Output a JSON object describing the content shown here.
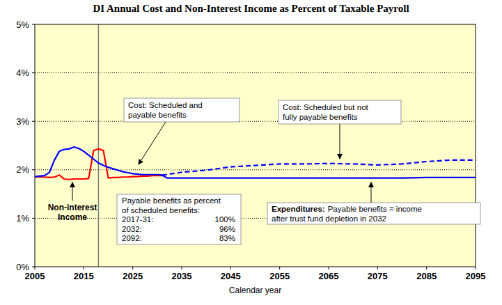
{
  "chart_data": {
    "type": "line",
    "title": "DI Annual Cost and Non-Interest Income as Percent of Taxable Payroll",
    "x_label": "Calendar year",
    "x": [
      2005,
      2006,
      2007,
      2008,
      2009,
      2010,
      2011,
      2012,
      2013,
      2014,
      2015,
      2016,
      2017,
      2018,
      2019,
      2020,
      2021,
      2022,
      2023,
      2024,
      2025,
      2026,
      2027,
      2028,
      2029,
      2030,
      2031,
      2032,
      2033,
      2034,
      2035,
      2040,
      2045,
      2050,
      2055,
      2060,
      2065,
      2070,
      2075,
      2080,
      2085,
      2090,
      2095
    ],
    "series": [
      {
        "color": "#ff0000",
        "line_style": "solid",
        "values": [
          1.85,
          1.85,
          1.85,
          1.84,
          1.85,
          1.89,
          1.81,
          1.8,
          1.81,
          1.81,
          1.81,
          1.82,
          2.4,
          2.43,
          2.4,
          1.83,
          1.84,
          1.84,
          1.85,
          1.85,
          1.86,
          1.86,
          1.87,
          1.87,
          1.88,
          1.88,
          1.88,
          null,
          null,
          null,
          null,
          null,
          null,
          null,
          null,
          null,
          null,
          null,
          null,
          null,
          null,
          null,
          null
        ]
      },
      {
        "color": "#0000ff",
        "line_style": "solid",
        "values": [
          1.86,
          1.87,
          1.88,
          1.95,
          2.2,
          2.38,
          2.42,
          2.43,
          2.47,
          2.44,
          2.38,
          2.3,
          2.22,
          2.14,
          2.09,
          2.05,
          2.02,
          1.99,
          1.96,
          1.94,
          1.92,
          1.91,
          1.9,
          1.9,
          1.9,
          1.9,
          1.89,
          1.83,
          1.83,
          1.83,
          1.83,
          1.83,
          1.83,
          1.83,
          1.83,
          1.83,
          1.83,
          1.83,
          1.83,
          1.83,
          1.84,
          1.84,
          1.84
        ]
      },
      {
        "color": "#0000ff",
        "line_style": "dashed",
        "values": [
          null,
          null,
          null,
          null,
          null,
          null,
          null,
          null,
          null,
          null,
          null,
          null,
          null,
          null,
          null,
          null,
          null,
          null,
          null,
          null,
          null,
          null,
          null,
          null,
          null,
          null,
          1.89,
          1.9,
          1.92,
          1.93,
          1.95,
          1.99,
          2.06,
          2.09,
          2.12,
          2.12,
          2.13,
          2.12,
          2.1,
          2.12,
          2.17,
          2.2,
          2.2
        ]
      }
    ],
    "xlim": [
      2005,
      2095
    ],
    "ylim": [
      0,
      5
    ],
    "xticks": [
      2005,
      2015,
      2025,
      2035,
      2045,
      2055,
      2065,
      2075,
      2085,
      2095
    ],
    "yticks": [
      {
        "value": 0,
        "label": "0%"
      },
      {
        "value": 1,
        "label": "1%"
      },
      {
        "value": 2,
        "label": "2%"
      },
      {
        "value": 3,
        "label": "3%"
      },
      {
        "value": 4,
        "label": "4%"
      },
      {
        "value": 5,
        "label": "5%"
      }
    ],
    "grid": true,
    "vline": 2018,
    "annotations": [
      {
        "text": [
          "Cost: Scheduled and",
          "payable benefits"
        ]
      },
      {
        "text": [
          "Cost: Scheduled but not",
          "fully payable benefits"
        ]
      },
      {
        "title": [
          "Non-interest",
          "Income"
        ]
      },
      {
        "title": [
          "Expenditures:"
        ],
        "text": [
          "Payable benefits = income",
          "after trust fund depletion in 2032"
        ]
      }
    ],
    "table": {
      "title": [
        "Payable benefits as percent",
        "of scheduled benefits:"
      ],
      "rows": [
        [
          "2017-31:",
          "100%"
        ],
        [
          "2032:",
          "96%"
        ],
        [
          "2092:",
          "83%"
        ]
      ]
    }
  }
}
